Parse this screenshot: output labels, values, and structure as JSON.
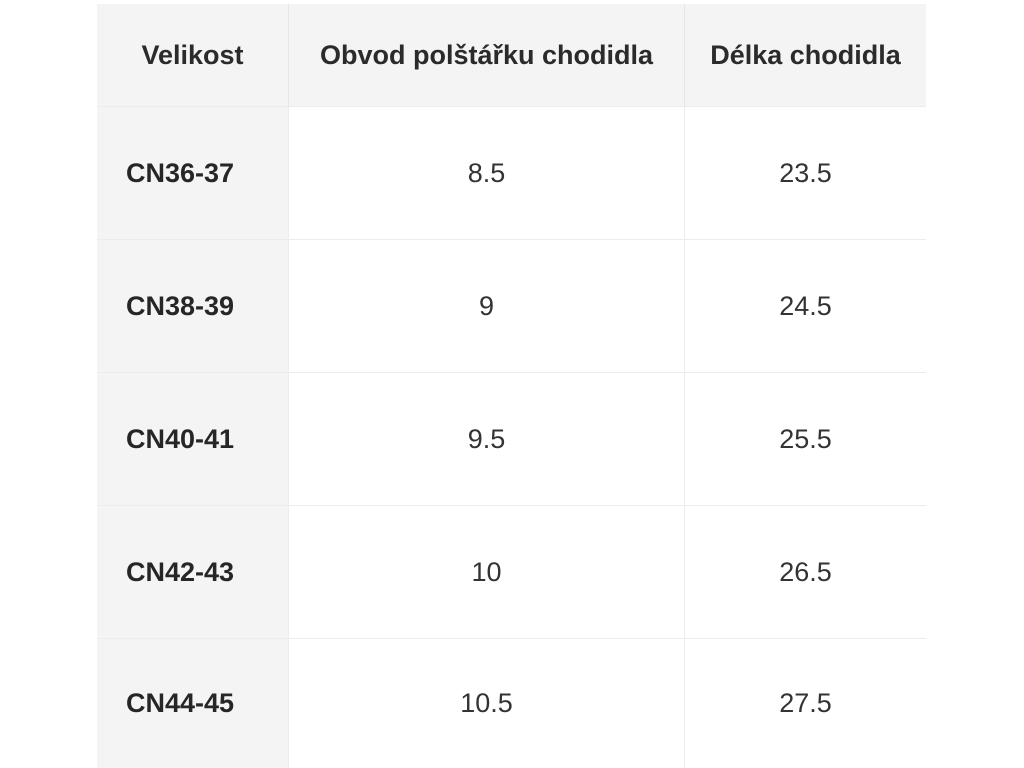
{
  "table": {
    "headers": [
      "Velikost",
      "Obvod polštářku chodidla",
      "Délka chodidla"
    ],
    "rows": [
      [
        "CN36-37",
        "8.5",
        "23.5"
      ],
      [
        "CN38-39",
        "9",
        "24.5"
      ],
      [
        "CN40-41",
        "9.5",
        "25.5"
      ],
      [
        "CN42-43",
        "10",
        "26.5"
      ],
      [
        "CN44-45",
        "10.5",
        "27.5"
      ]
    ]
  }
}
